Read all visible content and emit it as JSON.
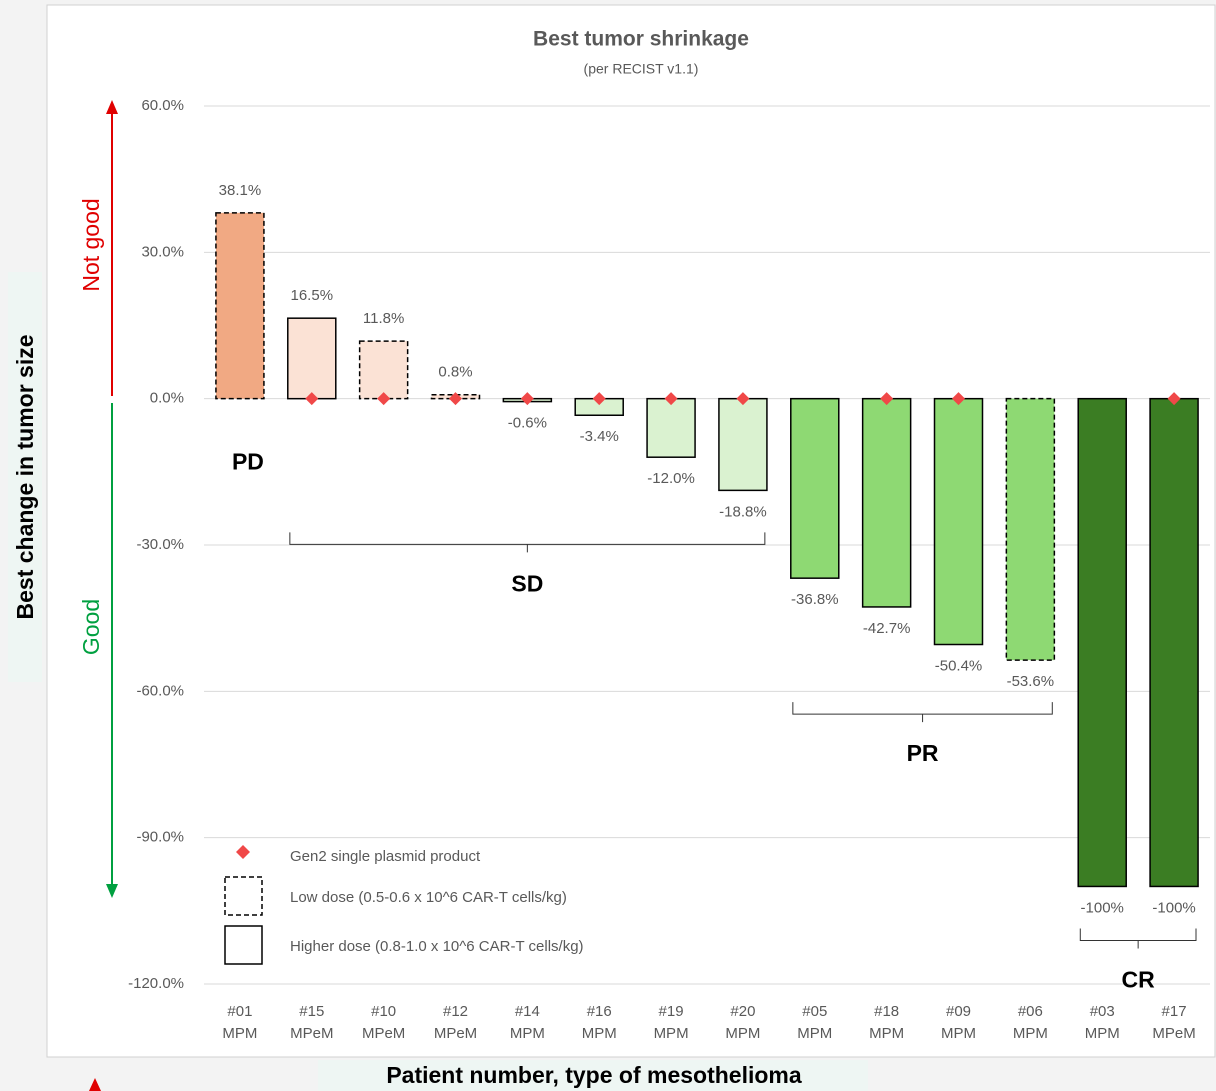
{
  "chart_data": {
    "type": "bar",
    "title": "Best tumor shrinkage",
    "subtitle": "(per RECIST v1.1)",
    "y_label": "Best change in tumor size",
    "x_label": "Patient number, type of mesothelioma",
    "annotations": {
      "up": "Not good",
      "down": "Good"
    },
    "categories": [
      [
        "#01",
        "MPM"
      ],
      [
        "#15",
        "MPeM"
      ],
      [
        "#10",
        "MPeM"
      ],
      [
        "#12",
        "MPeM"
      ],
      [
        "#14",
        "MPM"
      ],
      [
        "#16",
        "MPM"
      ],
      [
        "#19",
        "MPM"
      ],
      [
        "#20",
        "MPM"
      ],
      [
        "#05",
        "MPM"
      ],
      [
        "#18",
        "MPM"
      ],
      [
        "#09",
        "MPM"
      ],
      [
        "#06",
        "MPM"
      ],
      [
        "#03",
        "MPM"
      ],
      [
        "#17",
        "MPeM"
      ]
    ],
    "values": [
      38.1,
      16.5,
      11.8,
      0.8,
      -0.6,
      -3.4,
      -12.0,
      -18.8,
      -36.8,
      -42.7,
      -50.4,
      -53.6,
      -100,
      -100
    ],
    "value_labels": [
      "38.1%",
      "16.5%",
      "11.8%",
      "0.8%",
      "-0.6%",
      "-3.4%",
      "-12.0%",
      "-18.8%",
      "-36.8%",
      "-42.7%",
      "-50.4%",
      "-53.6%",
      "-100%",
      "-100%"
    ],
    "colors": [
      "#f1a983",
      "#fbe2d5",
      "#fbe2d5",
      "#fbe2d5",
      "#daf2d0",
      "#daf2d0",
      "#daf2d0",
      "#daf2d0",
      "#8ed973",
      "#8ed973",
      "#8ed973",
      "#8ed973",
      "#3b7d23",
      "#3b7d23"
    ],
    "dashed": [
      true,
      false,
      true,
      true,
      false,
      false,
      false,
      false,
      false,
      false,
      false,
      true,
      false,
      false
    ],
    "markers": {
      "name": "Gen2 single plasmid product",
      "color": "#f04848",
      "values": [
        null,
        0,
        0,
        0,
        0,
        0,
        0,
        0,
        null,
        0,
        0,
        null,
        null,
        0
      ]
    },
    "dose_legend": [
      {
        "label": "Low dose (0.5-0.6 x 10^6 CAR-T cells/kg)",
        "dashed": true
      },
      {
        "label": "Higher dose (0.8-1.0 x 10^6 CAR-T cells/kg)",
        "dashed": false
      }
    ],
    "groups": [
      {
        "label": "PD",
        "first": 0,
        "last": 0
      },
      {
        "label": "SD",
        "first": 1,
        "last": 7
      },
      {
        "label": "PR",
        "first": 8,
        "last": 11
      },
      {
        "label": "CR",
        "first": 12,
        "last": 13
      }
    ],
    "ylim": [
      -120,
      60
    ],
    "yticks": [
      {
        "value": 60,
        "label": "60.0%"
      },
      {
        "value": 30,
        "label": "30.0%"
      },
      {
        "value": 0,
        "label": "0.0%"
      },
      {
        "value": -30,
        "label": "-30.0%"
      },
      {
        "value": -60,
        "label": "-60.0%"
      },
      {
        "value": -90,
        "label": "-90.0%"
      },
      {
        "value": -120,
        "label": "-120.0%"
      }
    ],
    "grid": true
  }
}
